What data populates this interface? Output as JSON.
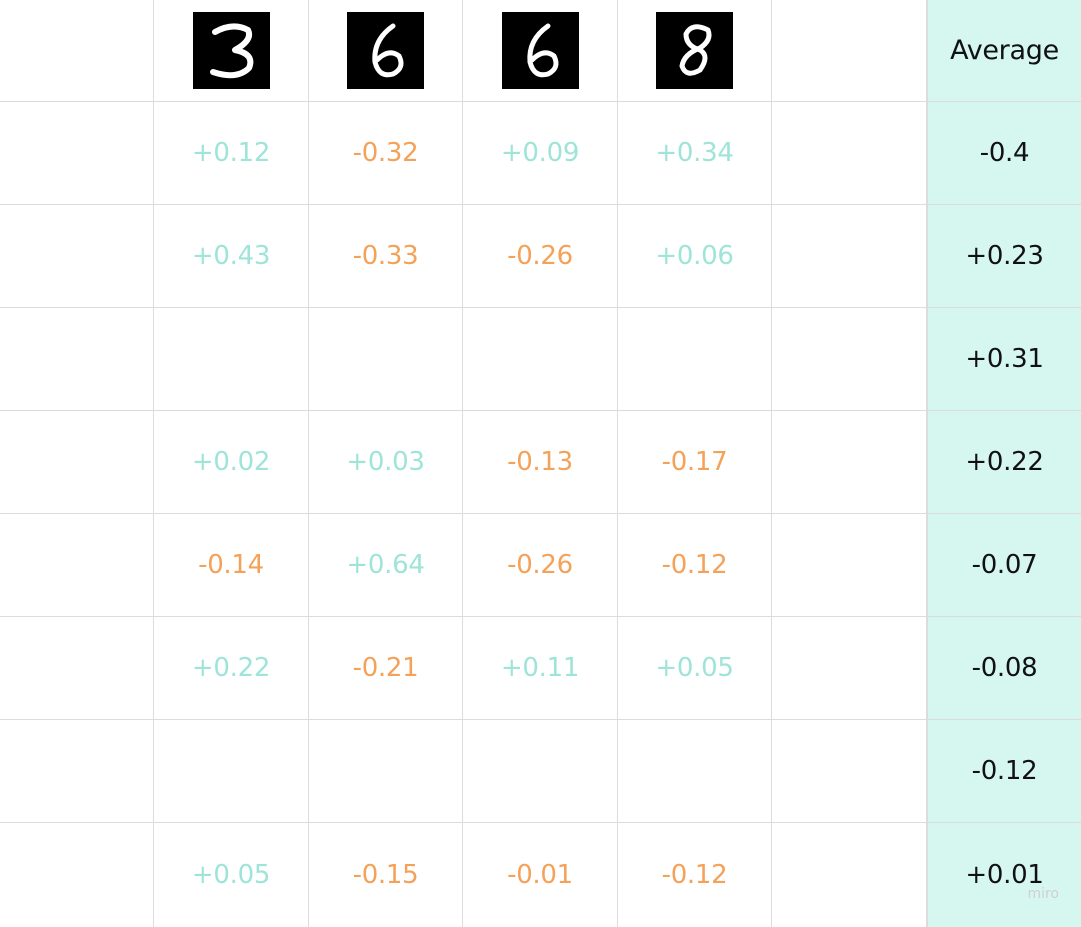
{
  "header": {
    "digits": [
      {
        "label": "3",
        "icon": "handwritten-digit-3"
      },
      {
        "label": "6",
        "icon": "handwritten-digit-6"
      },
      {
        "label": "6",
        "icon": "handwritten-digit-6"
      },
      {
        "label": "8",
        "icon": "handwritten-digit-8"
      }
    ],
    "average_label": "Average"
  },
  "rows": [
    {
      "values": [
        "+0.12",
        "-0.32",
        "+0.09",
        "+0.34"
      ],
      "average": "-0.4"
    },
    {
      "values": [
        "+0.43",
        "-0.33",
        "-0.26",
        "+0.06"
      ],
      "average": "+0.23"
    },
    {
      "values": [
        "",
        "",
        "",
        ""
      ],
      "average": "+0.31"
    },
    {
      "values": [
        "+0.02",
        "+0.03",
        "-0.13",
        "-0.17"
      ],
      "average": "+0.22"
    },
    {
      "values": [
        "-0.14",
        "+0.64",
        "-0.26",
        "-0.12"
      ],
      "average": "-0.07"
    },
    {
      "values": [
        "+0.22",
        "-0.21",
        "+0.11",
        "+0.05"
      ],
      "average": "-0.08"
    },
    {
      "values": [
        "",
        "",
        "",
        ""
      ],
      "average": "-0.12"
    },
    {
      "values": [
        "+0.05",
        "-0.15",
        "-0.01",
        "-0.12"
      ],
      "average": "+0.01"
    }
  ],
  "colors": {
    "positive": "#9fe4d8",
    "negative": "#f4a259",
    "average_bg": "#d6f7f0",
    "grid_line": "#dcdcdc"
  },
  "watermark": "miro"
}
